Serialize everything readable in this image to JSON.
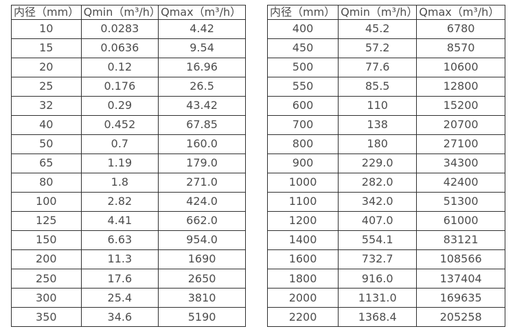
{
  "page": {
    "background_color": "#ffffff",
    "border_color": "#2f2f2f",
    "text_color": "#4d4d4d"
  },
  "tables": [
    {
      "name": "flow-table-small-diameters",
      "columns": [
        {
          "key": "diameter",
          "label": "内径（mm）"
        },
        {
          "key": "qmin",
          "label": "Qmin（m³/h）"
        },
        {
          "key": "qmax",
          "label": "Qmax（m³/h）"
        }
      ],
      "rows": [
        [
          "10",
          "0.0283",
          "4.42"
        ],
        [
          "15",
          "0.0636",
          "9.54"
        ],
        [
          "20",
          "0.12",
          "16.96"
        ],
        [
          "25",
          "0.176",
          "26.5"
        ],
        [
          "32",
          "0.29",
          "43.42"
        ],
        [
          "40",
          "0.452",
          "67.85"
        ],
        [
          "50",
          "0.7",
          "160.0"
        ],
        [
          "65",
          "1.19",
          "179.0"
        ],
        [
          "80",
          "1.8",
          "271.0"
        ],
        [
          "100",
          "2.82",
          "424.0"
        ],
        [
          "125",
          "4.41",
          "662.0"
        ],
        [
          "150",
          "6.63",
          "954.0"
        ],
        [
          "200",
          "11.3",
          "1690"
        ],
        [
          "250",
          "17.6",
          "2650"
        ],
        [
          "300",
          "25.4",
          "3810"
        ],
        [
          "350",
          "34.6",
          "5190"
        ]
      ]
    },
    {
      "name": "flow-table-large-diameters",
      "columns": [
        {
          "key": "diameter",
          "label": "内径（mm）"
        },
        {
          "key": "qmin",
          "label": "Qmin（m³/h）"
        },
        {
          "key": "qmax",
          "label": "Qmax（m³/h）"
        }
      ],
      "rows": [
        [
          "400",
          "45.2",
          "6780"
        ],
        [
          "450",
          "57.2",
          "8570"
        ],
        [
          "500",
          "77.6",
          "10600"
        ],
        [
          "550",
          "85.5",
          "12800"
        ],
        [
          "600",
          "110",
          "15200"
        ],
        [
          "700",
          "138",
          "20700"
        ],
        [
          "800",
          "180",
          "27100"
        ],
        [
          "900",
          "229.0",
          "34300"
        ],
        [
          "1000",
          "282.0",
          "42400"
        ],
        [
          "1100",
          "342.0",
          "51300"
        ],
        [
          "1200",
          "407.0",
          "61000"
        ],
        [
          "1400",
          "554.1",
          "83121"
        ],
        [
          "1600",
          "732.7",
          "108566"
        ],
        [
          "1800",
          "916.0",
          "137404"
        ],
        [
          "2000",
          "1131.0",
          "169635"
        ],
        [
          "2200",
          "1368.4",
          "205258"
        ]
      ]
    }
  ],
  "chart_data": {
    "type": "table",
    "title": "",
    "columns": [
      "内径（mm）",
      "Qmin（m³/h）",
      "Qmax（m³/h）"
    ],
    "diameter_mm": [
      10,
      15,
      20,
      25,
      32,
      40,
      50,
      65,
      80,
      100,
      125,
      150,
      200,
      250,
      300,
      350,
      400,
      450,
      500,
      550,
      600,
      700,
      800,
      900,
      1000,
      1100,
      1200,
      1400,
      1600,
      1800,
      2000,
      2200
    ],
    "qmin_m3h": [
      0.0283,
      0.0636,
      0.12,
      0.176,
      0.29,
      0.452,
      0.7,
      1.19,
      1.8,
      2.82,
      4.41,
      6.63,
      11.3,
      17.6,
      25.4,
      34.6,
      45.2,
      57.2,
      77.6,
      85.5,
      110,
      138,
      180,
      229.0,
      282.0,
      342.0,
      407.0,
      554.1,
      732.7,
      916.0,
      1131.0,
      1368.4
    ],
    "qmax_m3h": [
      4.42,
      9.54,
      16.96,
      26.5,
      43.42,
      67.85,
      160.0,
      179.0,
      271.0,
      424.0,
      662.0,
      954.0,
      1690,
      2650,
      3810,
      5190,
      6780,
      8570,
      10600,
      12800,
      15200,
      20700,
      27100,
      34300,
      42400,
      51300,
      61000,
      83121,
      108566,
      137404,
      169635,
      205258
    ]
  }
}
